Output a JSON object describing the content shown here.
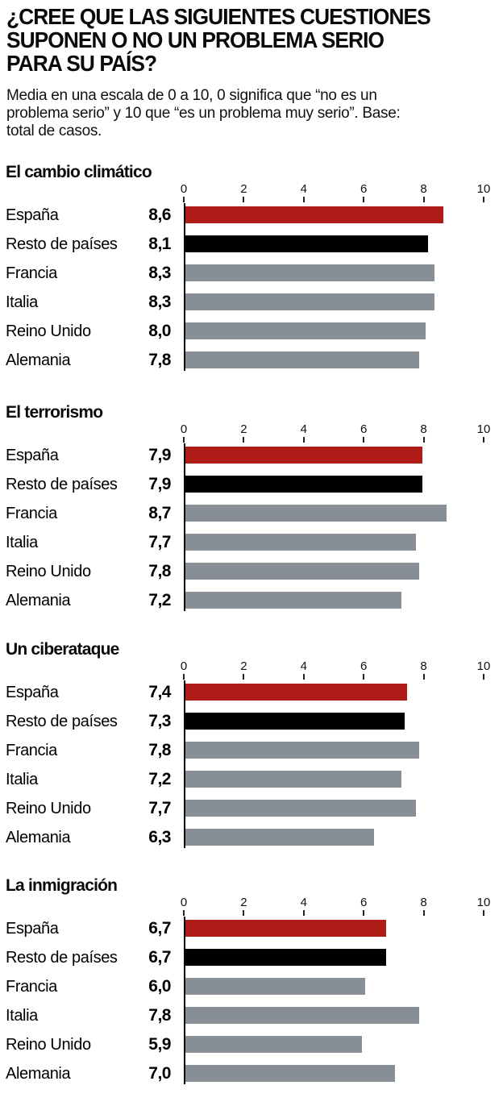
{
  "header": {
    "title": "¿CREE QUE LAS SIGUIENTES CUESTIONES\nSUPONEN O NO UN PROBLEMA SERIO\nPARA SU PAÍS?",
    "subtitle": "Media en una escala de 0 a 10, 0 significa que “no es un\nproblema serio” y 10 que “es un problema muy serio”. Base:\ntotal de casos."
  },
  "colors": {
    "red": "#af1c18",
    "black": "#000000",
    "gray": "#878e95",
    "axis": "#000000"
  },
  "axis": {
    "min": 0,
    "max": 10,
    "tick_values": [
      0,
      2,
      4,
      6,
      8,
      10
    ],
    "tick_labels": [
      "0",
      "2",
      "4",
      "6",
      "8",
      "10"
    ]
  },
  "chart_data": [
    {
      "type": "bar",
      "title": "El cambio climático",
      "categories": [
        "España",
        "Resto de países",
        "Francia",
        "Italia",
        "Reino Unido",
        "Alemania"
      ],
      "values": [
        8.6,
        8.1,
        8.3,
        8.3,
        8.0,
        7.8
      ],
      "value_labels": [
        "8,6",
        "8,1",
        "8,3",
        "8,3",
        "8,0",
        "7,8"
      ],
      "bar_color_keys": [
        "red",
        "black",
        "gray",
        "gray",
        "gray",
        "gray"
      ],
      "xlim": [
        0,
        10
      ]
    },
    {
      "type": "bar",
      "title": "El terrorismo",
      "categories": [
        "España",
        "Resto de países",
        "Francia",
        "Italia",
        "Reino Unido",
        "Alemania"
      ],
      "values": [
        7.9,
        7.9,
        8.7,
        7.7,
        7.8,
        7.2
      ],
      "value_labels": [
        "7,9",
        "7,9",
        "8,7",
        "7,7",
        "7,8",
        "7,2"
      ],
      "bar_color_keys": [
        "red",
        "black",
        "gray",
        "gray",
        "gray",
        "gray"
      ],
      "xlim": [
        0,
        10
      ]
    },
    {
      "type": "bar",
      "title": "Un ciberataque",
      "categories": [
        "España",
        "Resto de países",
        "Francia",
        "Italia",
        "Reino Unido",
        "Alemania"
      ],
      "values": [
        7.4,
        7.3,
        7.8,
        7.2,
        7.7,
        6.3
      ],
      "value_labels": [
        "7,4",
        "7,3",
        "7,8",
        "7,2",
        "7,7",
        "6,3"
      ],
      "bar_color_keys": [
        "red",
        "black",
        "gray",
        "gray",
        "gray",
        "gray"
      ],
      "xlim": [
        0,
        10
      ]
    },
    {
      "type": "bar",
      "title": "La inmigración",
      "categories": [
        "España",
        "Resto de países",
        "Francia",
        "Italia",
        "Reino Unido",
        "Alemania"
      ],
      "values": [
        6.7,
        6.7,
        6.0,
        7.8,
        5.9,
        7.0
      ],
      "value_labels": [
        "6,7",
        "6,7",
        "6,0",
        "7,8",
        "5,9",
        "7,0"
      ],
      "bar_color_keys": [
        "red",
        "black",
        "gray",
        "gray",
        "gray",
        "gray"
      ],
      "xlim": [
        0,
        10
      ]
    }
  ]
}
